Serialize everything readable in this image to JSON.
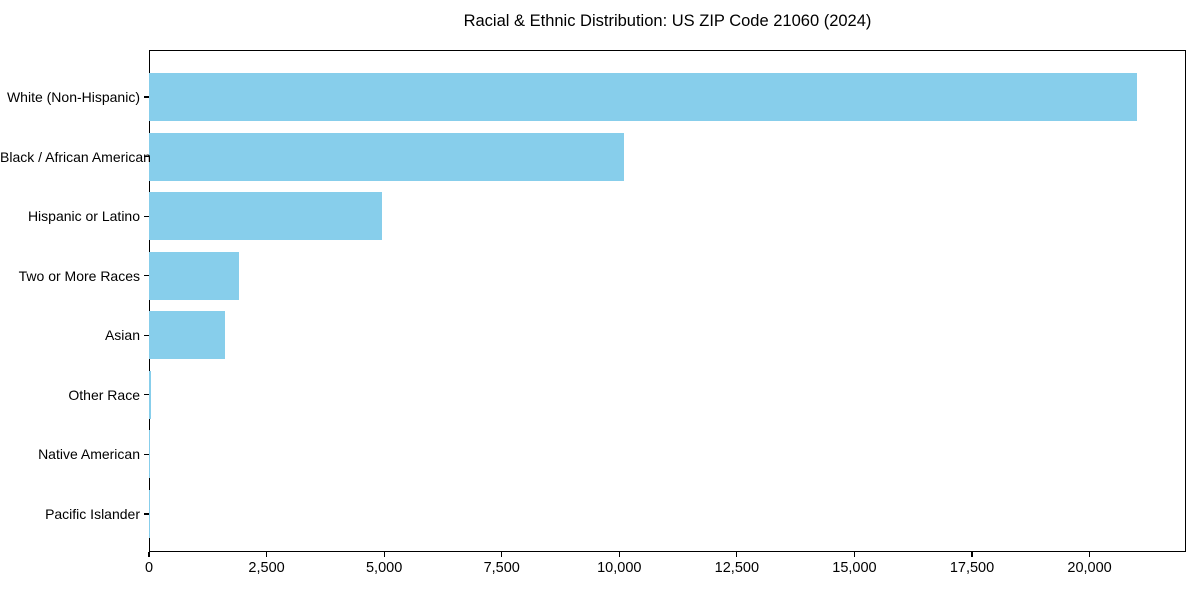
{
  "chart_data": {
    "type": "bar",
    "orientation": "horizontal",
    "title": "Racial & Ethnic Distribution: US ZIP Code 21060 (2024)",
    "categories": [
      "White (Non-Hispanic)",
      "Black / African American",
      "Hispanic or Latino",
      "Two or More Races",
      "Asian",
      "Other Race",
      "Native American",
      "Pacific Islander"
    ],
    "values": [
      21000,
      10100,
      4950,
      1920,
      1610,
      40,
      20,
      8
    ],
    "xlabel": "",
    "ylabel": "",
    "xlim": [
      0,
      22050
    ],
    "xticks": [
      0,
      2500,
      5000,
      7500,
      10000,
      12500,
      15000,
      17500,
      20000
    ],
    "xtick_labels": [
      "0",
      "2,500",
      "5,000",
      "7,500",
      "10,000",
      "12,500",
      "15,000",
      "17,500",
      "20,000"
    ],
    "grid": false,
    "legend": "none",
    "bar_color": "#87CEEB",
    "frame_color": "#000000",
    "background_color": "#ffffff"
  }
}
